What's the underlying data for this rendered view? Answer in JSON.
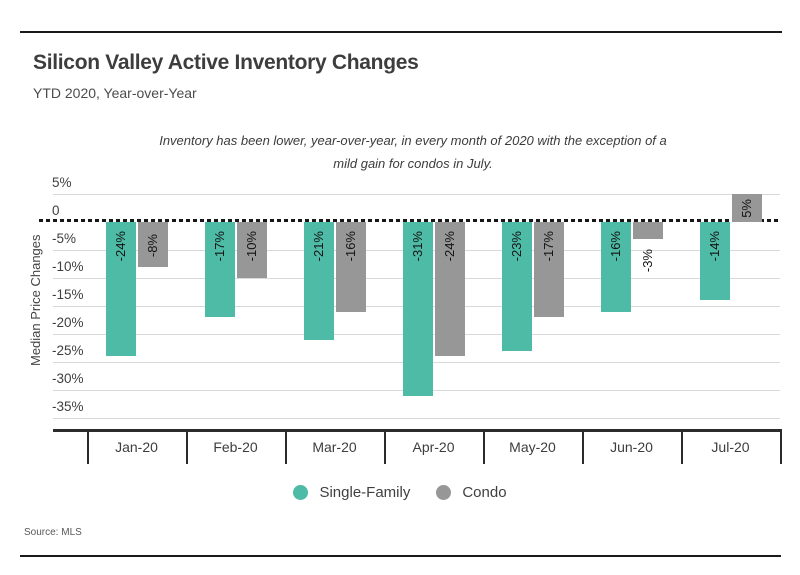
{
  "header": {
    "title": "Silicon Valley Active Inventory Changes",
    "subtitle": "YTD 2020, Year-over-Year"
  },
  "note": {
    "line1": "Inventory has been lower, year-over-year, in every month of 2020 with the exception of a",
    "line2": "mild gain for condos in July."
  },
  "source": "Source: MLS",
  "colors": {
    "single_family": "#4dbba6",
    "condo": "#979797",
    "gridline": "#d9d9d9",
    "zero_line": "#161616",
    "axis_line": "#2b2b2b"
  },
  "chart_data": {
    "type": "bar",
    "title": "Silicon Valley Active Inventory Changes",
    "subtitle": "YTD 2020, Year-over-Year",
    "categories": [
      "Jan-20",
      "Feb-20",
      "Mar-20",
      "Apr-20",
      "May-20",
      "Jun-20",
      "Jul-20"
    ],
    "series": [
      {
        "name": "Single-Family",
        "color": "#4dbba6",
        "values": [
          -24,
          -17,
          -21,
          -31,
          -23,
          -16,
          -14
        ]
      },
      {
        "name": "Condo",
        "color": "#979797",
        "values": [
          -8,
          -10,
          -16,
          -24,
          -17,
          -3,
          5
        ]
      }
    ],
    "xlabel": "",
    "ylabel": "Median Price Changes",
    "yticks": [
      "5%",
      "0",
      "-5%",
      "-10%",
      "-15%",
      "-20%",
      "-25%",
      "-30%",
      "-35%"
    ],
    "ytick_values": [
      5,
      0,
      -5,
      -10,
      -15,
      -20,
      -25,
      -30,
      -35
    ],
    "ylim": [
      -37,
      6.5
    ],
    "grid": true,
    "zero_line_style": "dashed",
    "data_label_format": "{value}%",
    "data_label_rotation": -90,
    "legend_position": "bottom"
  }
}
